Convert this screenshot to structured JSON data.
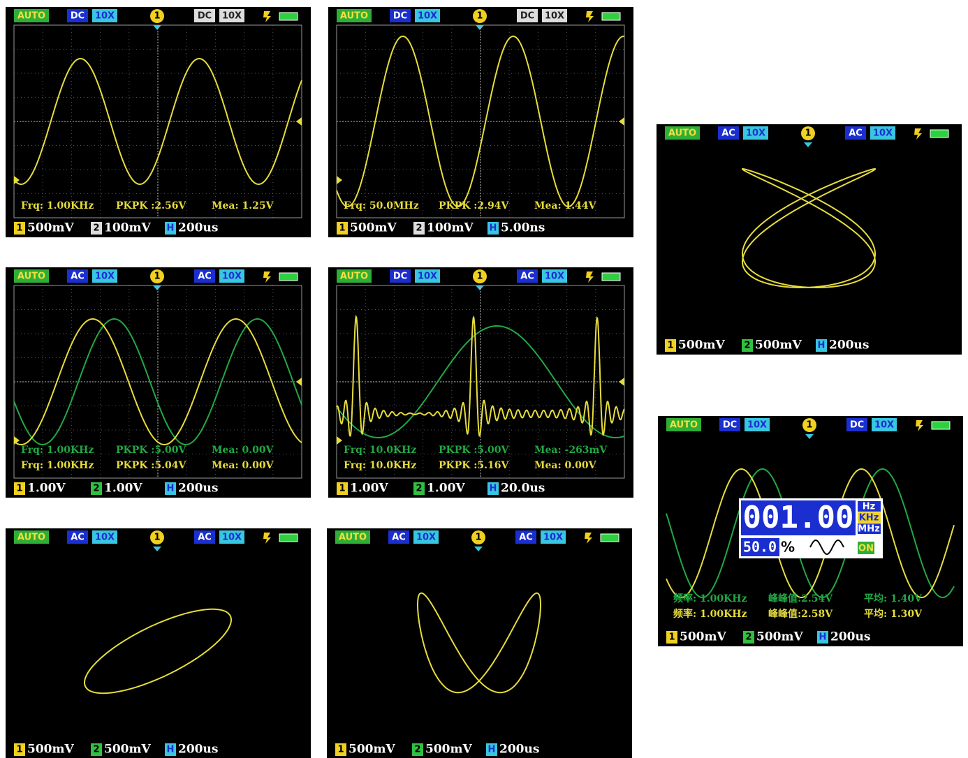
{
  "screens": [
    {
      "mode": "AUTO",
      "ch1_coupling": "DC",
      "ch1_probe": "10X",
      "trigger": "1",
      "ch2_coupling": "DC",
      "ch2_probe": "10X",
      "measurements": [
        [
          "Frq: 1.00KHz",
          "PKPK :2.56V",
          "Mea: 1.25V"
        ]
      ],
      "footer": {
        "ch1": "1",
        "ch1_scale": "500mV",
        "ch2": "2",
        "ch2_scale": "100mV",
        "h": "H",
        "timebase": "200us"
      }
    },
    {
      "mode": "AUTO",
      "ch1_coupling": "DC",
      "ch1_probe": "10X",
      "trigger": "1",
      "ch2_coupling": "DC",
      "ch2_probe": "10X",
      "measurements": [
        [
          "Frq: 50.0MHz",
          "PKPK :2.94V",
          "Mea: 1.44V"
        ]
      ],
      "footer": {
        "ch1": "1",
        "ch1_scale": "500mV",
        "ch2": "2",
        "ch2_scale": "100mV",
        "h": "H",
        "timebase": "5.00ns"
      }
    },
    {
      "mode": "AUTO",
      "ch1_coupling": "AC",
      "ch1_probe": "10X",
      "trigger": "1",
      "ch2_coupling": "AC",
      "ch2_probe": "10X",
      "footer": {
        "ch1": "1",
        "ch1_scale": "500mV",
        "ch2": "2",
        "ch2_scale": "500mV",
        "h": "H",
        "timebase": "200us"
      }
    },
    {
      "mode": "AUTO",
      "ch1_coupling": "AC",
      "ch1_probe": "10X",
      "trigger": "1",
      "ch2_coupling": "AC",
      "ch2_probe": "10X",
      "measurements": [
        [
          "Frq: 1.00KHz",
          "PKPK :5.00V",
          "Mea: 0.00V"
        ],
        [
          "Frq: 1.00KHz",
          "PKPK :5.04V",
          "Mea: 0.00V"
        ]
      ],
      "footer": {
        "ch1": "1",
        "ch1_scale": "1.00V",
        "ch2": "2",
        "ch2_scale": "1.00V",
        "h": "H",
        "timebase": "200us"
      }
    },
    {
      "mode": "AUTO",
      "ch1_coupling": "DC",
      "ch1_probe": "10X",
      "trigger": "1",
      "ch2_coupling": "AC",
      "ch2_probe": "10X",
      "measurements": [
        [
          "Frq: 10.0KHz",
          "PKPK :5.00V",
          "Mea: -263mV"
        ],
        [
          "Frq: 10.0KHz",
          "PKPK :5.16V",
          "Mea: 0.00V"
        ]
      ],
      "footer": {
        "ch1": "1",
        "ch1_scale": "1.00V",
        "ch2": "2",
        "ch2_scale": "1.00V",
        "h": "H",
        "timebase": "20.0us"
      }
    },
    {
      "mode": "AUTO",
      "ch1_coupling": "DC",
      "ch1_probe": "10X",
      "trigger": "1",
      "ch2_coupling": "DC",
      "ch2_probe": "10X",
      "meter": {
        "reading": "001.00",
        "units": [
          "Hz",
          "KHz",
          "MHz"
        ],
        "duty": "50.0",
        "duty_unit": "%",
        "state": "ON"
      },
      "measurements": [
        [
          "频率: 1.00KHz",
          "峰峰值:2.54V",
          "平均: 1.40V"
        ],
        [
          "频率: 1.00KHz",
          "峰峰值:2.58V",
          "平均: 1.30V"
        ]
      ],
      "footer": {
        "ch1": "1",
        "ch1_scale": "500mV",
        "ch2": "2",
        "ch2_scale": "500mV",
        "h": "H",
        "timebase": "200us"
      }
    },
    {
      "mode": "AUTO",
      "ch1_coupling": "AC",
      "ch1_probe": "10X",
      "trigger": "1",
      "ch2_coupling": "AC",
      "ch2_probe": "10X",
      "footer": {
        "ch1": "1",
        "ch1_scale": "500mV",
        "ch2": "2",
        "ch2_scale": "500mV",
        "h": "H",
        "timebase": "200us"
      }
    },
    {
      "mode": "AUTO",
      "ch1_coupling": "AC",
      "ch1_probe": "10X",
      "trigger": "1",
      "ch2_coupling": "AC",
      "ch2_probe": "10X",
      "footer": {
        "ch1": "1",
        "ch1_scale": "500mV",
        "ch2": "2",
        "ch2_scale": "500mV",
        "h": "H",
        "timebase": "200us"
      }
    }
  ]
}
